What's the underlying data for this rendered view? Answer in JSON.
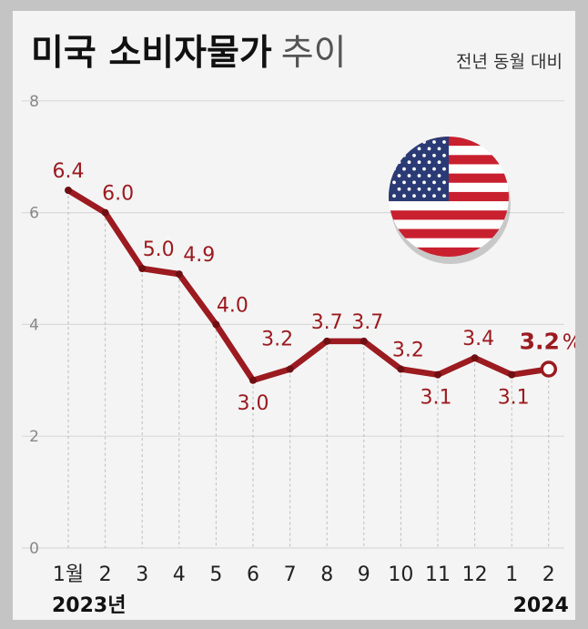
{
  "header": {
    "title_main": "미국 소비자물가",
    "title_light": "추이",
    "subtitle": "전년 동월 대비"
  },
  "colors": {
    "line": "#9b1b20",
    "grid": "#d9d9d9",
    "background": "#f4f4f4",
    "frame": "#c4c4c4"
  },
  "chart_data": {
    "type": "line",
    "title": "미국 소비자물가 추이",
    "subtitle": "전년 동월 대비",
    "categories": [
      "1월",
      "2",
      "3",
      "4",
      "5",
      "6",
      "7",
      "8",
      "9",
      "10",
      "11",
      "12",
      "1",
      "2"
    ],
    "year_labels": [
      "2023년",
      "2024"
    ],
    "values": [
      6.4,
      6.0,
      5.0,
      4.9,
      4.0,
      3.0,
      3.2,
      3.7,
      3.7,
      3.2,
      3.1,
      3.4,
      3.1,
      3.2
    ],
    "value_labels": [
      "6.4",
      "6.0",
      "5.0",
      "4.9",
      "4.0",
      "3.0",
      "3.2",
      "3.7",
      "3.7",
      "3.2",
      "3.1",
      "3.4",
      "3.1",
      "3.2"
    ],
    "last_unit": "%",
    "y_ticks": [
      "0",
      "2",
      "4",
      "6",
      "8"
    ],
    "ylim": [
      0,
      8
    ],
    "grid": "horizontal solid, vertical dashed",
    "legend": "none",
    "decoration": "us-flag-icon"
  }
}
